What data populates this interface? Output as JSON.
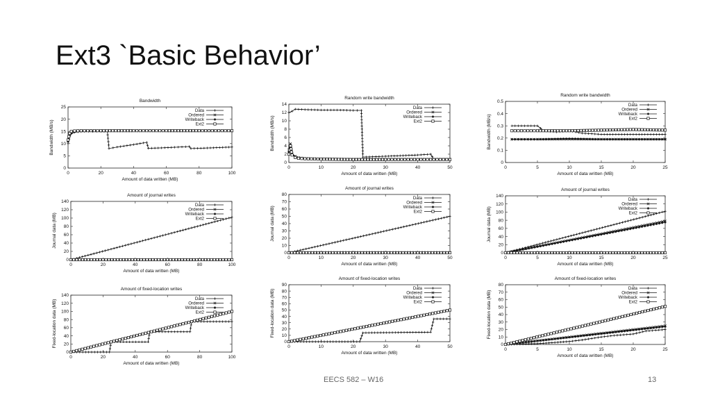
{
  "slide": {
    "title": "Ext3 `Basic Behavior’",
    "footer_course": "EECS 582 – W16",
    "page_number": "13"
  },
  "legend_labels": [
    "Data",
    "Ordered",
    "Writeback",
    "Ext2"
  ],
  "chart_data": [
    {
      "id": "c00",
      "type": "line",
      "title": "Bandwidth",
      "xlabel": "Amount of data written (MB)",
      "ylabel": "Bandwidth (MB/s)",
      "xlim": [
        0,
        100
      ],
      "ylim": [
        0,
        25
      ],
      "xticks": [
        0,
        20,
        40,
        60,
        80,
        100
      ],
      "yticks": [
        0,
        5,
        10,
        15,
        20,
        25
      ],
      "series": [
        {
          "name": "Data",
          "x": [
            0,
            1,
            2,
            4,
            6,
            10,
            15,
            20,
            24,
            25,
            30,
            40,
            48,
            49,
            55,
            65,
            74,
            75,
            85,
            100
          ],
          "y": [
            10,
            13,
            14,
            14.6,
            14.8,
            15,
            15,
            15,
            15,
            8,
            8.6,
            9.6,
            10.5,
            8.1,
            8.2,
            8.5,
            8.8,
            8,
            8.2,
            8.6
          ]
        },
        {
          "name": "Ordered",
          "x": [
            0,
            1,
            2,
            4,
            8,
            20,
            40,
            60,
            80,
            100
          ],
          "y": [
            11,
            13.5,
            14.5,
            15,
            15.2,
            15.2,
            15.2,
            15.2,
            15.2,
            15.2
          ]
        },
        {
          "name": "Writeback",
          "x": [
            0,
            1,
            2,
            4,
            8,
            20,
            40,
            60,
            80,
            100
          ],
          "y": [
            11,
            14,
            14.8,
            15.1,
            15.3,
            15.3,
            15.3,
            15.3,
            15.3,
            15.3
          ]
        },
        {
          "name": "Ext2",
          "x": [
            0,
            1,
            2,
            4,
            8,
            20,
            40,
            60,
            80,
            100
          ],
          "y": [
            11.5,
            14.2,
            15,
            15.2,
            15.3,
            15.3,
            15.3,
            15.3,
            15.3,
            15.3
          ]
        }
      ]
    },
    {
      "id": "c01",
      "type": "line",
      "title": "Random write bandwidth",
      "xlabel": "Amount of data written (MB)",
      "ylabel": "Bandwidth (MB/s)",
      "xlim": [
        0,
        50
      ],
      "ylim": [
        0,
        14
      ],
      "xticks": [
        0,
        10,
        20,
        30,
        40,
        50
      ],
      "yticks": [
        0,
        2,
        4,
        6,
        8,
        10,
        12,
        14
      ],
      "series": [
        {
          "name": "Data",
          "x": [
            0,
            1,
            2,
            5,
            10,
            15,
            20,
            22.5,
            23,
            30,
            40,
            44,
            45,
            50
          ],
          "y": [
            12,
            12.3,
            12.8,
            12.7,
            12.6,
            12.6,
            12.5,
            12.5,
            1.3,
            1.5,
            1.8,
            2,
            0.8,
            0.8
          ]
        },
        {
          "name": "Ordered",
          "x": [
            0,
            0.5,
            1,
            2,
            3,
            5,
            10,
            20,
            30,
            40,
            50
          ],
          "y": [
            3,
            4.5,
            2.2,
            1.5,
            1.2,
            1,
            0.9,
            0.8,
            0.8,
            0.8,
            0.8
          ]
        },
        {
          "name": "Writeback",
          "x": [
            0,
            0.5,
            1,
            2,
            3,
            5,
            10,
            20,
            30,
            40,
            50
          ],
          "y": [
            2.5,
            4.3,
            2,
            1.4,
            1.1,
            0.9,
            0.8,
            0.8,
            0.8,
            0.8,
            0.8
          ]
        },
        {
          "name": "Ext2",
          "x": [
            0,
            0.5,
            1,
            2,
            3,
            5,
            10,
            20,
            30,
            40,
            50
          ],
          "y": [
            2,
            4,
            1.8,
            1.2,
            1,
            0.9,
            0.8,
            0.7,
            0.7,
            0.7,
            0.7
          ]
        }
      ]
    },
    {
      "id": "c02",
      "type": "line",
      "title": "Random write bandwidth",
      "xlabel": "Amount of data written (MB)",
      "ylabel": "Bandwidth (MB/s)",
      "xlim": [
        0,
        25
      ],
      "ylim": [
        0,
        0.5
      ],
      "xticks": [
        0,
        5,
        10,
        15,
        20,
        25
      ],
      "yticks": [
        0,
        0.1,
        0.2,
        0.3,
        0.4,
        0.5
      ],
      "series": [
        {
          "name": "Data",
          "x": [
            1,
            2,
            4,
            5,
            6,
            8,
            10,
            12,
            15,
            20,
            25
          ],
          "y": [
            0.3,
            0.3,
            0.3,
            0.3,
            0.26,
            0.25,
            0.26,
            0.24,
            0.23,
            0.23,
            0.23
          ]
        },
        {
          "name": "Ordered",
          "x": [
            1,
            5,
            10,
            15,
            20,
            25
          ],
          "y": [
            0.19,
            0.19,
            0.19,
            0.19,
            0.19,
            0.19
          ]
        },
        {
          "name": "Writeback",
          "x": [
            1,
            5,
            10,
            15,
            20,
            25
          ],
          "y": [
            0.19,
            0.19,
            0.195,
            0.19,
            0.19,
            0.19
          ]
        },
        {
          "name": "Ext2",
          "x": [
            1,
            5,
            10,
            15,
            20,
            25
          ],
          "y": [
            0.26,
            0.26,
            0.26,
            0.265,
            0.27,
            0.265
          ]
        }
      ]
    },
    {
      "id": "c10",
      "type": "line",
      "title": "Amount of journal writes",
      "xlabel": "Amount of data written (MB)",
      "ylabel": "Journal data (MB)",
      "xlim": [
        0,
        100
      ],
      "ylim": [
        0,
        140
      ],
      "xticks": [
        0,
        20,
        40,
        60,
        80,
        100
      ],
      "yticks": [
        0,
        20,
        40,
        60,
        80,
        100,
        120,
        140
      ],
      "series": [
        {
          "name": "Data",
          "x": [
            0,
            100
          ],
          "y": [
            0,
            102
          ]
        },
        {
          "name": "Ordered",
          "x": [
            0,
            100
          ],
          "y": [
            0.6,
            0.6
          ]
        },
        {
          "name": "Writeback",
          "x": [
            0,
            100
          ],
          "y": [
            0.3,
            0.3
          ]
        },
        {
          "name": "Ext2",
          "x": [
            0,
            100
          ],
          "y": [
            0,
            0
          ]
        }
      ]
    },
    {
      "id": "c11",
      "type": "line",
      "title": "Amount of journal writes",
      "xlabel": "Amount of data written (MB)",
      "ylabel": "Journal data (MB)",
      "xlim": [
        0,
        50
      ],
      "ylim": [
        0,
        80
      ],
      "xticks": [
        0,
        10,
        20,
        30,
        40,
        50
      ],
      "yticks": [
        0,
        10,
        20,
        30,
        40,
        50,
        60,
        70,
        80
      ],
      "series": [
        {
          "name": "Data",
          "x": [
            0,
            50
          ],
          "y": [
            0,
            50
          ]
        },
        {
          "name": "Ordered",
          "x": [
            0,
            50
          ],
          "y": [
            0.5,
            0.5
          ]
        },
        {
          "name": "Writeback",
          "x": [
            0,
            50
          ],
          "y": [
            0.3,
            0.3
          ]
        },
        {
          "name": "Ext2",
          "x": [
            0,
            50
          ],
          "y": [
            0,
            0
          ]
        }
      ]
    },
    {
      "id": "c12",
      "type": "line",
      "title": "Amount of journal writes",
      "xlabel": "Amount of data written (MB)",
      "ylabel": "Journal data (MB)",
      "xlim": [
        0,
        25
      ],
      "ylim": [
        0,
        140
      ],
      "xticks": [
        0,
        5,
        10,
        15,
        20,
        25
      ],
      "yticks": [
        0,
        20,
        40,
        60,
        80,
        100,
        120,
        140
      ],
      "series": [
        {
          "name": "Data",
          "x": [
            0,
            25
          ],
          "y": [
            0,
            102
          ]
        },
        {
          "name": "Ordered",
          "x": [
            0,
            25
          ],
          "y": [
            0,
            78
          ]
        },
        {
          "name": "Writeback",
          "x": [
            0,
            25
          ],
          "y": [
            0,
            75
          ]
        },
        {
          "name": "Ext2",
          "x": [
            0,
            25
          ],
          "y": [
            0,
            0
          ]
        }
      ]
    },
    {
      "id": "c20",
      "type": "line",
      "title": "Amount of fixed-location writes",
      "xlabel": "Amount of data written (MB)",
      "ylabel": "Fixed-location data (MB)",
      "xlim": [
        0,
        100
      ],
      "ylim": [
        0,
        140
      ],
      "xticks": [
        0,
        20,
        40,
        60,
        80,
        100
      ],
      "yticks": [
        0,
        20,
        40,
        60,
        80,
        100,
        120,
        140
      ],
      "series": [
        {
          "name": "Data",
          "x": [
            0,
            24,
            25,
            48,
            49,
            74,
            75,
            100
          ],
          "y": [
            0,
            0,
            25,
            25,
            50,
            50,
            75,
            75
          ]
        },
        {
          "name": "Ordered",
          "x": [
            0,
            100
          ],
          "y": [
            0,
            100
          ]
        },
        {
          "name": "Writeback",
          "x": [
            0,
            100
          ],
          "y": [
            0,
            100
          ]
        },
        {
          "name": "Ext2",
          "x": [
            0,
            100
          ],
          "y": [
            0,
            100
          ]
        }
      ]
    },
    {
      "id": "c21",
      "type": "line",
      "title": "Amount of fixed-location writes",
      "xlabel": "Amount of data written (MB)",
      "ylabel": "Fixed-location data (MB)",
      "xlim": [
        0,
        50
      ],
      "ylim": [
        0,
        90
      ],
      "xticks": [
        0,
        10,
        20,
        30,
        40,
        50
      ],
      "yticks": [
        0,
        10,
        20,
        30,
        40,
        50,
        60,
        70,
        80,
        90
      ],
      "series": [
        {
          "name": "Data",
          "x": [
            0,
            22,
            23,
            44,
            45,
            50
          ],
          "y": [
            0,
            0,
            14,
            15,
            36,
            36
          ]
        },
        {
          "name": "Ordered",
          "x": [
            0,
            50
          ],
          "y": [
            0,
            50
          ]
        },
        {
          "name": "Writeback",
          "x": [
            0,
            50
          ],
          "y": [
            0,
            50
          ]
        },
        {
          "name": "Ext2",
          "x": [
            0,
            50
          ],
          "y": [
            0,
            50
          ]
        }
      ]
    },
    {
      "id": "c22",
      "type": "line",
      "title": "Amount of fixed-location writes",
      "xlabel": "Amount of data written (MB)",
      "ylabel": "Fixed-location data (MB)",
      "xlim": [
        0,
        25
      ],
      "ylim": [
        0,
        80
      ],
      "xticks": [
        0,
        5,
        10,
        15,
        20,
        25
      ],
      "yticks": [
        0,
        10,
        20,
        30,
        40,
        50,
        60,
        70,
        80
      ],
      "series": [
        {
          "name": "Data",
          "x": [
            0,
            5,
            10,
            12,
            15,
            17,
            20,
            22,
            25
          ],
          "y": [
            0,
            1,
            4,
            6,
            10,
            12,
            14,
            18,
            20
          ]
        },
        {
          "name": "Ordered",
          "x": [
            0,
            25
          ],
          "y": [
            0,
            25
          ]
        },
        {
          "name": "Writeback",
          "x": [
            0,
            25
          ],
          "y": [
            0,
            24
          ]
        },
        {
          "name": "Ext2",
          "x": [
            0,
            25
          ],
          "y": [
            0,
            51
          ]
        }
      ]
    }
  ]
}
